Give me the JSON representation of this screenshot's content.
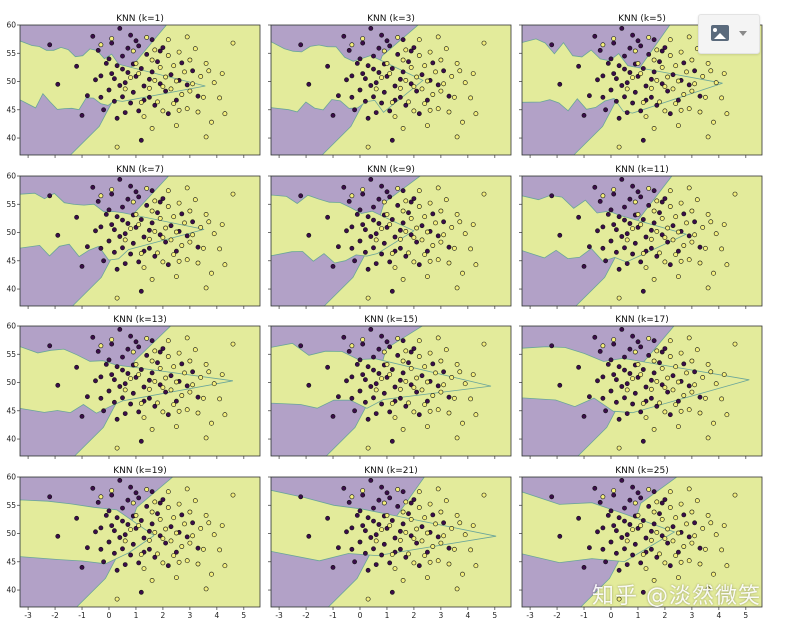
{
  "colors": {
    "class_a": "#b2a1c7",
    "class_b": "#e3eb9b",
    "boundary": "#6aa59a",
    "point_a": "#3b0d4a",
    "point_b": "#f4ef7c",
    "point_edge": "#111111",
    "frame": "#333333"
  },
  "toolbar": {
    "image_button_icon": "image-icon",
    "dropdown_icon": "chevron-down-icon"
  },
  "watermark": {
    "text": "知乎 @淡然微笑"
  },
  "chart_data": {
    "type": "scatter",
    "description_free": true,
    "xlim": [
      -3.3,
      5.6
    ],
    "ylim": [
      37,
      60
    ],
    "x_ticks": [
      -3,
      -2,
      -1,
      0,
      1,
      2,
      3,
      4,
      5
    ],
    "y_ticks": [
      40,
      45,
      50,
      55,
      60
    ],
    "panels": [
      {
        "title": "KNN (k=1)"
      },
      {
        "title": "KNN (k=3)"
      },
      {
        "title": "KNN (k=5)"
      },
      {
        "title": "KNN (k=7)"
      },
      {
        "title": "KNN (k=9)"
      },
      {
        "title": "KNN (k=11)"
      },
      {
        "title": "KNN (k=13)"
      },
      {
        "title": "KNN (k=15)"
      },
      {
        "title": "KNN (k=17)"
      },
      {
        "title": "KNN (k=19)"
      },
      {
        "title": "KNN (k=21)"
      },
      {
        "title": "KNN (k=25)"
      }
    ],
    "series": [
      {
        "class": 0,
        "points": [
          [
            -2.2,
            56.5
          ],
          [
            -1.9,
            49.5
          ],
          [
            -1.2,
            52.7
          ],
          [
            -0.8,
            47.5
          ],
          [
            -0.6,
            58
          ],
          [
            -0.4,
            55.5
          ],
          [
            -0.3,
            51
          ],
          [
            -0.2,
            45
          ],
          [
            -0.1,
            53.2
          ],
          [
            0,
            48.5
          ],
          [
            0.1,
            56.8
          ],
          [
            0.2,
            50.5
          ],
          [
            0.3,
            43.5
          ],
          [
            0.3,
            52.8
          ],
          [
            0.4,
            59.4
          ],
          [
            0.5,
            47.3
          ],
          [
            0.5,
            54.5
          ],
          [
            0.6,
            49.8
          ],
          [
            0.7,
            55.9
          ],
          [
            0.7,
            51.6
          ],
          [
            0.8,
            46.2
          ],
          [
            0.9,
            53.1
          ],
          [
            0.9,
            48.1
          ],
          [
            1.0,
            50.9
          ],
          [
            1.0,
            57.2
          ],
          [
            1.1,
            44.8
          ],
          [
            1.2,
            52.3
          ],
          [
            1.2,
            39.6
          ],
          [
            1.3,
            49.2
          ],
          [
            1.4,
            54.8
          ],
          [
            1.5,
            47.2
          ],
          [
            1.6,
            51.7
          ],
          [
            1.7,
            45.8
          ],
          [
            1.8,
            53.5
          ],
          [
            1.9,
            49.6
          ],
          [
            2.0,
            56
          ],
          [
            2.1,
            48.3
          ],
          [
            2.3,
            51.2
          ],
          [
            2.5,
            46.7
          ],
          [
            2.7,
            53.3
          ],
          [
            2.9,
            49.4
          ],
          [
            3.1,
            51.9
          ],
          [
            0.2,
            46.5
          ],
          [
            0.6,
            44.5
          ],
          [
            1.1,
            56.3
          ],
          [
            1.6,
            57.4
          ],
          [
            -0.5,
            50.3
          ],
          [
            0.0,
            54.0
          ],
          [
            0.4,
            49.3
          ],
          [
            0.8,
            58.2
          ],
          [
            1.3,
            46.7
          ],
          [
            1.9,
            55.4
          ],
          [
            2.2,
            44.3
          ],
          [
            0.1,
            51.4
          ],
          [
            -0.3,
            47.2
          ],
          [
            0.5,
            52.2
          ],
          [
            1.5,
            50.4
          ],
          [
            2.6,
            50.2
          ],
          [
            3.3,
            47.4
          ],
          [
            -1.0,
            44.0
          ]
        ]
      },
      {
        "class": 1,
        "points": [
          [
            -0.3,
            56.5
          ],
          [
            0.1,
            57.6
          ],
          [
            0.3,
            38.4
          ],
          [
            0.6,
            48.7
          ],
          [
            0.9,
            55.4
          ],
          [
            1.1,
            51.4
          ],
          [
            1.3,
            43.8
          ],
          [
            1.4,
            57.8
          ],
          [
            1.5,
            48.8
          ],
          [
            1.6,
            53.8
          ],
          [
            1.7,
            50.2
          ],
          [
            1.8,
            46.4
          ],
          [
            1.9,
            52.5
          ],
          [
            2.0,
            44.8
          ],
          [
            2.1,
            50.8
          ],
          [
            2.2,
            54.6
          ],
          [
            2.3,
            48.7
          ],
          [
            2.4,
            52.8
          ],
          [
            2.5,
            42.2
          ],
          [
            2.5,
            50.1
          ],
          [
            2.6,
            55.2
          ],
          [
            2.7,
            47.7
          ],
          [
            2.8,
            51.7
          ],
          [
            2.9,
            45.2
          ],
          [
            3.0,
            53.8
          ],
          [
            3.1,
            49.6
          ],
          [
            3.2,
            55.8
          ],
          [
            3.3,
            44.6
          ],
          [
            3.4,
            50.9
          ],
          [
            3.5,
            47.2
          ],
          [
            3.6,
            53.2
          ],
          [
            3.8,
            42.8
          ],
          [
            3.9,
            49.8
          ],
          [
            4.1,
            47.1
          ],
          [
            4.2,
            51.4
          ],
          [
            4.3,
            44.3
          ],
          [
            4.6,
            56.8
          ],
          [
            2.2,
            57.4
          ],
          [
            1.2,
            46.3
          ],
          [
            0.8,
            50.7
          ],
          [
            2.9,
            57.9
          ],
          [
            3.6,
            40.2
          ],
          [
            1.6,
            41.7
          ],
          [
            2.4,
            46.1
          ],
          [
            1.0,
            53.2
          ],
          [
            2.0,
            49.1
          ],
          [
            3.0,
            48.3
          ],
          [
            1.7,
            55.6
          ],
          [
            2.6,
            44.9
          ],
          [
            3.7,
            51.9
          ]
        ]
      }
    ]
  }
}
